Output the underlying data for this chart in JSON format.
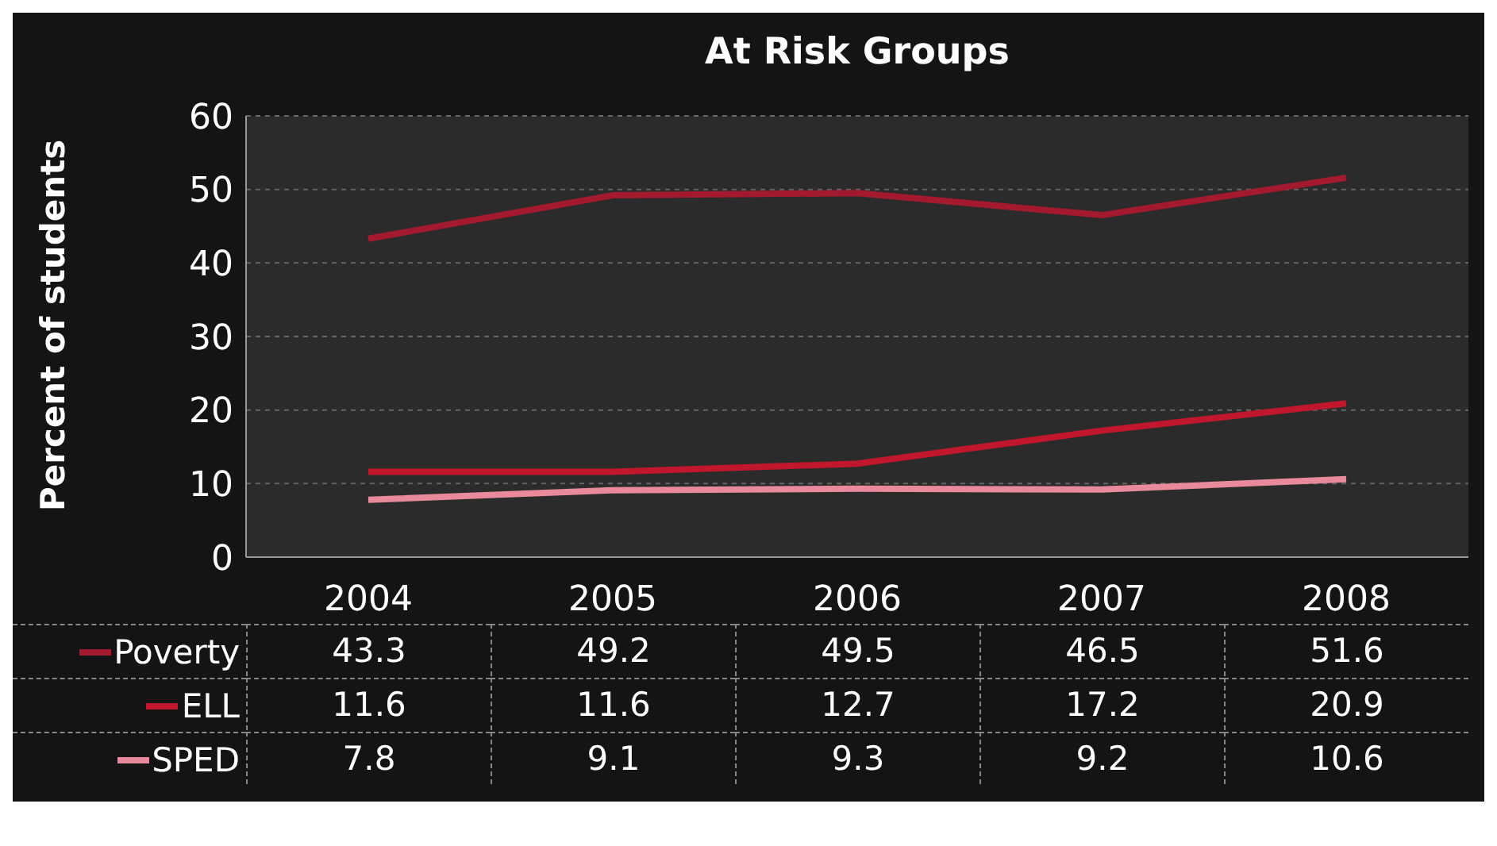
{
  "chart_data": {
    "type": "line",
    "title": "At Risk Groups",
    "ylabel": "Percent of students",
    "categories": [
      "2004",
      "2005",
      "2006",
      "2007",
      "2008"
    ],
    "series": [
      {
        "name": "Poverty",
        "color": "#a3192e",
        "values": [
          43.3,
          49.2,
          49.5,
          46.5,
          51.6
        ]
      },
      {
        "name": "ELL",
        "color": "#c0172c",
        "values": [
          11.6,
          11.6,
          12.7,
          17.2,
          20.9
        ]
      },
      {
        "name": "SPED",
        "color": "#e88a9c",
        "values": [
          7.8,
          9.1,
          9.3,
          9.2,
          10.6
        ]
      }
    ],
    "ylim": [
      0,
      60
    ],
    "yticks": [
      0,
      10,
      20,
      30,
      40,
      50,
      60
    ],
    "grid": "y",
    "legend": "bottom",
    "data_labels": true,
    "marker": "none",
    "line_style": "solid"
  }
}
